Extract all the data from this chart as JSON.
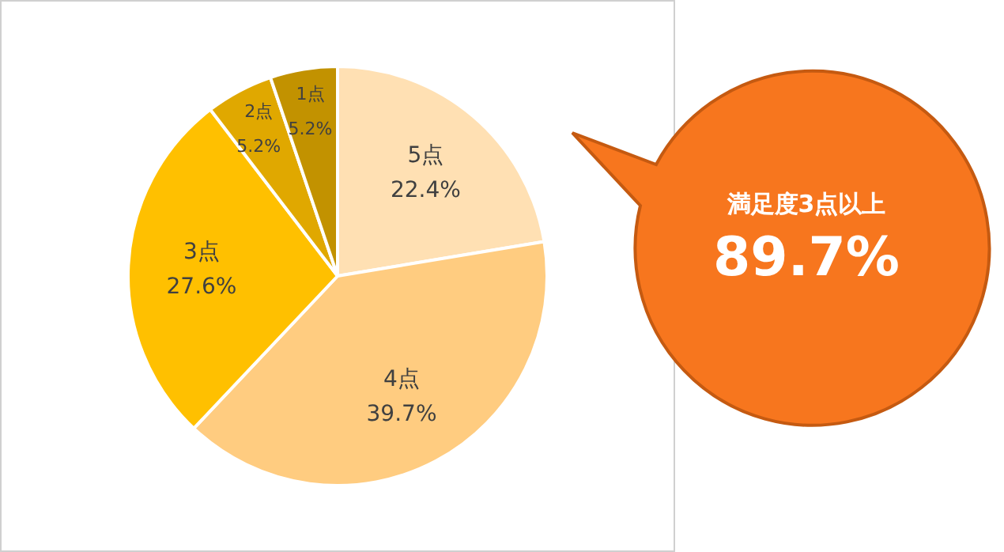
{
  "chart_data": {
    "type": "pie",
    "categories": [
      "5点",
      "4点",
      "3点",
      "2点",
      "1点"
    ],
    "values": [
      22.4,
      39.7,
      27.6,
      5.2,
      5.2
    ],
    "colors": [
      "#ffe0b3",
      "#ffcc80",
      "#ffc000",
      "#e0a800",
      "#c29200"
    ],
    "value_labels": [
      "22.4%",
      "39.7%",
      "27.6%",
      "5.2%",
      "5.2%"
    ],
    "legend": false,
    "annotations": [
      "満足度3点以上",
      "89.7%"
    ]
  }
}
